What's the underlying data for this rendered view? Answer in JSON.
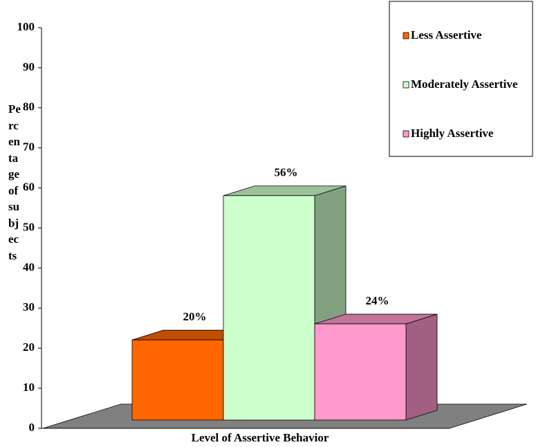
{
  "chart_data": {
    "type": "bar3d",
    "x_label": "Level of Assertive Behavior",
    "y_label": "Percentage of subjects",
    "categories": [
      null
    ],
    "series": [
      {
        "name": "Less Assertive",
        "color": "#ff6600",
        "values": [
          20
        ],
        "value_labels": [
          "20%"
        ]
      },
      {
        "name": "Moderately Assertive",
        "color": "#ccffcc",
        "values": [
          56
        ],
        "value_labels": [
          "56%"
        ]
      },
      {
        "name": "Highly Assertive",
        "color": "#ff99cc",
        "values": [
          24
        ],
        "value_labels": [
          "24%"
        ]
      }
    ],
    "ylim": [
      0,
      100
    ],
    "yticks": [
      0,
      10,
      20,
      30,
      40,
      50,
      60,
      70,
      80,
      90,
      100
    ],
    "legend": "top-right"
  }
}
